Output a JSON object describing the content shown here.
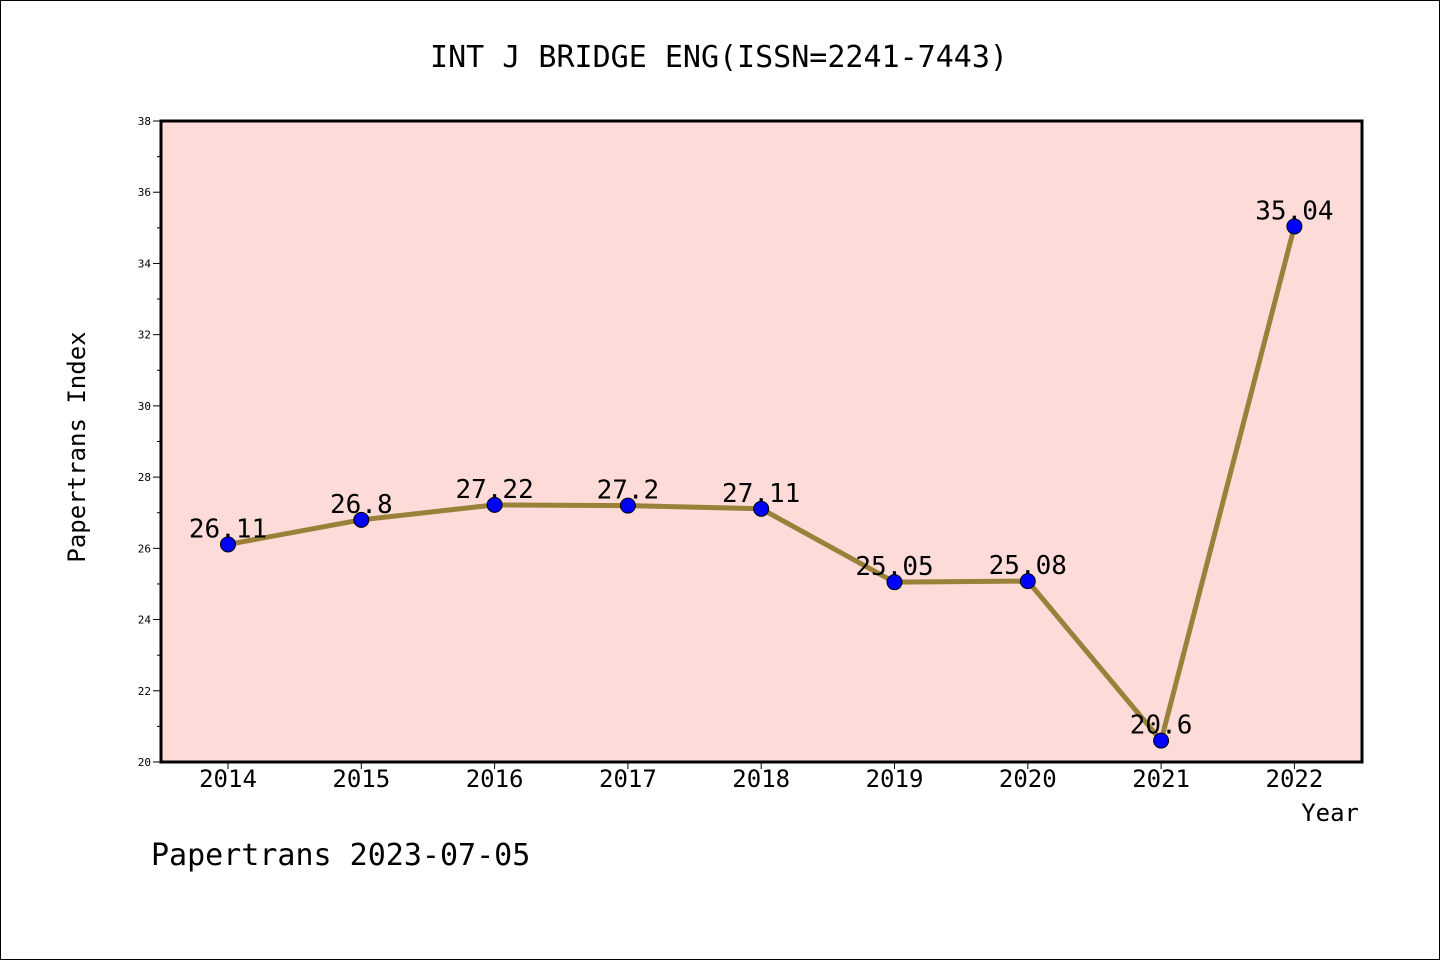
{
  "chart_data": {
    "type": "line",
    "title": "INT J BRIDGE ENG(ISSN=2241-7443)",
    "xlabel": "Year",
    "ylabel": "Papertrans Index",
    "categories": [
      "2014",
      "2015",
      "2016",
      "2017",
      "2018",
      "2019",
      "2020",
      "2021",
      "2022"
    ],
    "values": [
      26.11,
      26.8,
      27.22,
      27.2,
      27.11,
      25.05,
      25.08,
      20.6,
      35.04
    ],
    "data_labels": [
      "26.11",
      "26.8",
      "27.22",
      "27.2",
      "27.11",
      "25.05",
      "25.08",
      "20.6",
      "35.04"
    ],
    "ylim": [
      20,
      38
    ],
    "yticks": [
      20,
      22,
      24,
      26,
      28,
      30,
      32,
      34,
      36,
      38
    ],
    "grid": false,
    "legend": "none"
  },
  "footer": "Papertrans 2023-07-05",
  "colors": {
    "plot_background": "#fddbd8",
    "line": "#9a8038",
    "marker": "#0000ff"
  }
}
